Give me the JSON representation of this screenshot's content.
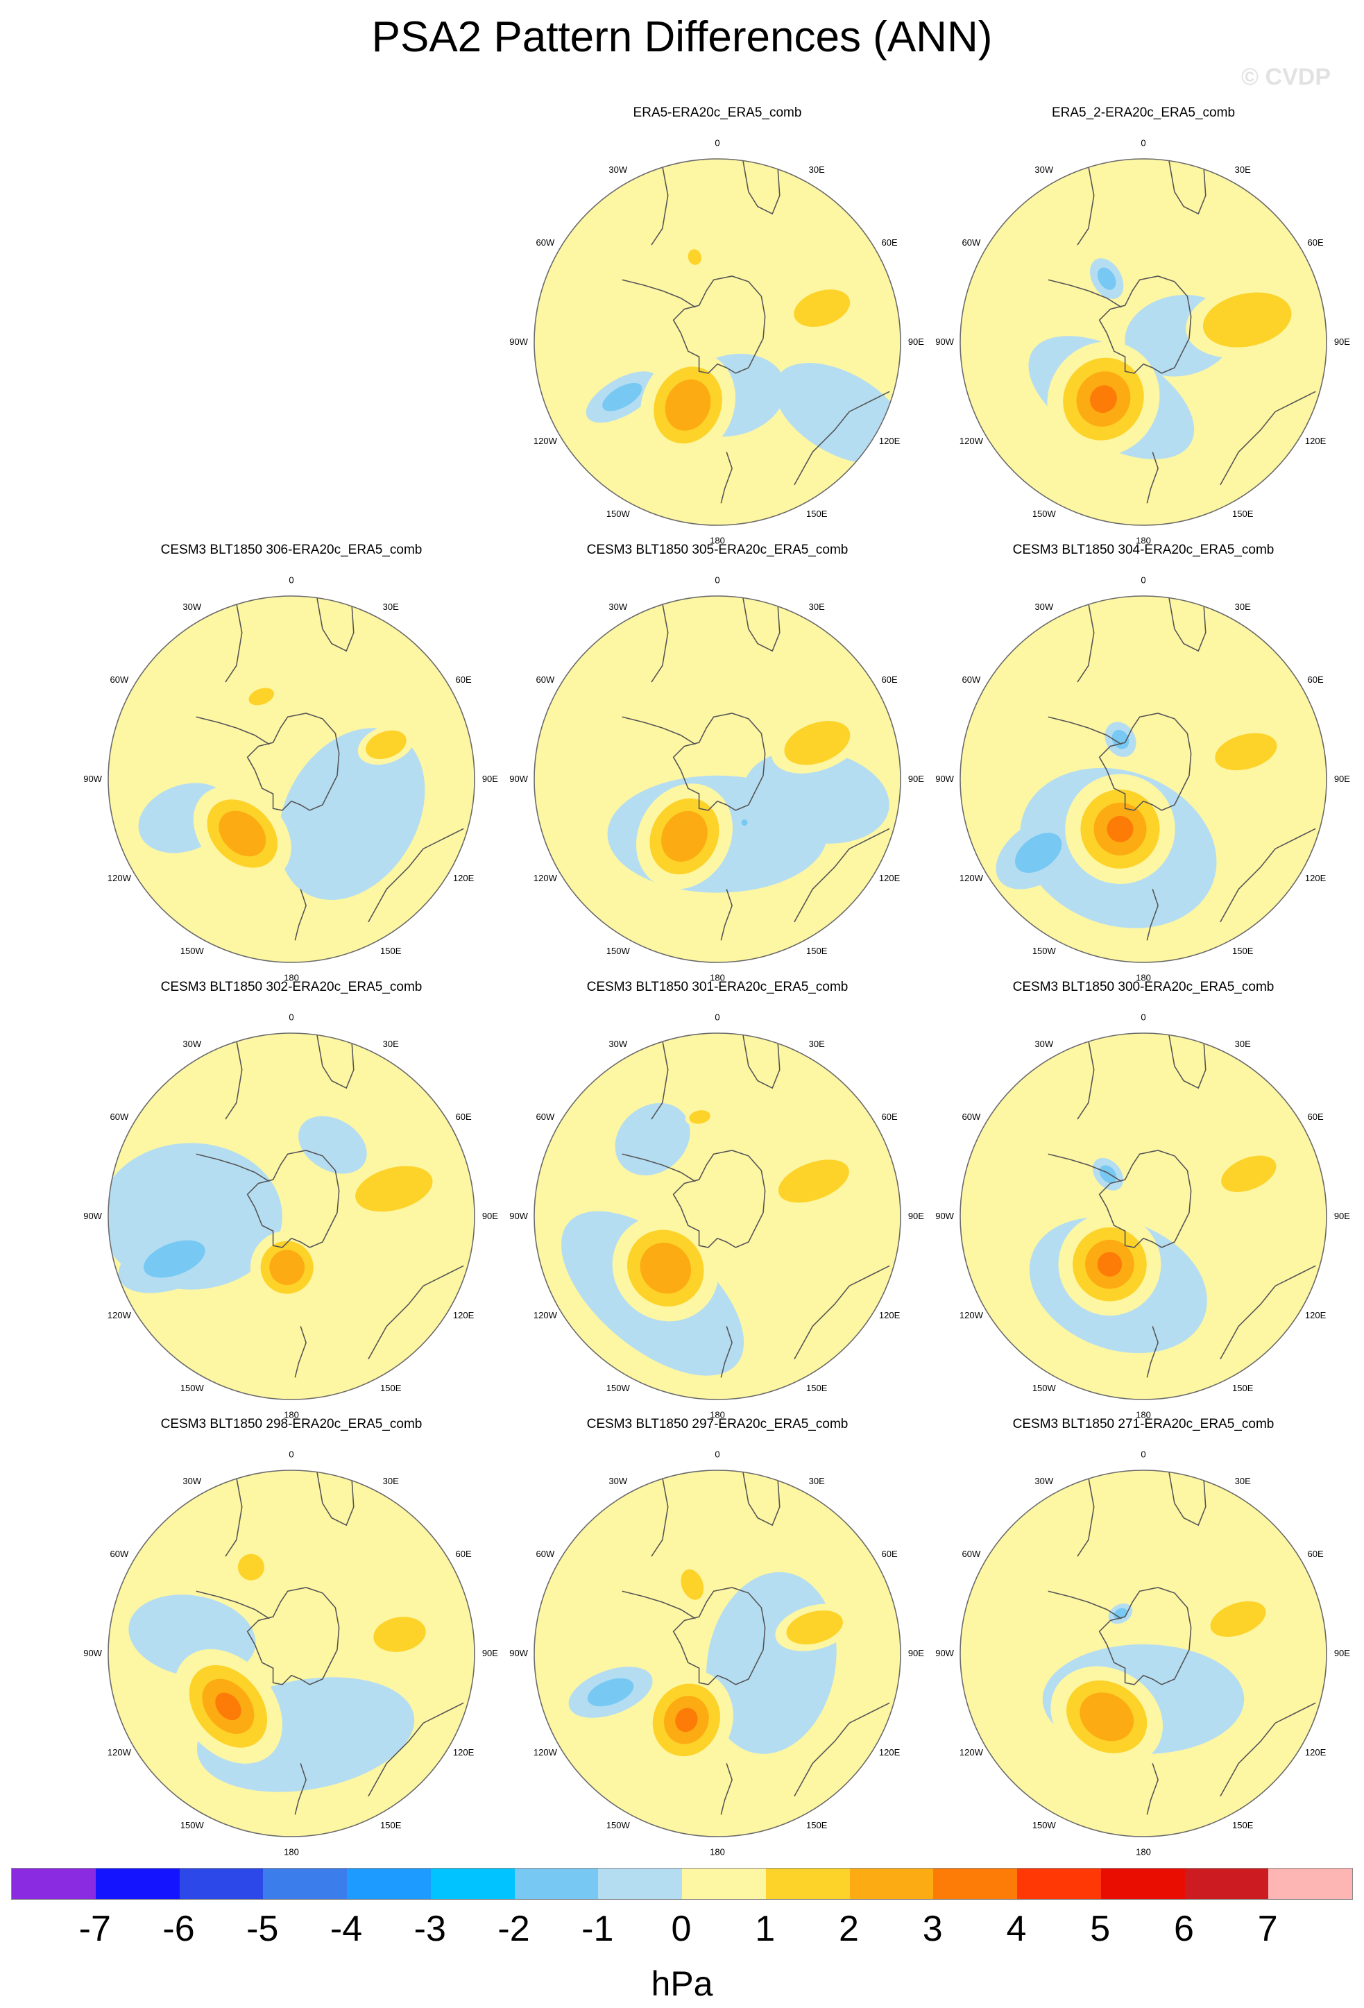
{
  "figure": {
    "title": "PSA2 Pattern Differences (ANN)",
    "watermark": "© CVDP",
    "units": "hPa"
  },
  "map_labels": [
    "0",
    "30E",
    "60E",
    "90E",
    "120E",
    "150E",
    "180",
    "150W",
    "120W",
    "90W",
    "60W",
    "30W"
  ],
  "colors": {
    "map_boundary": "#6a6a6a",
    "coast": "#555555",
    "palette": [
      "#8a2be2",
      "#1414ff",
      "#2c48e8",
      "#3b7deb",
      "#1e9bff",
      "#00c3ff",
      "#77c9f3",
      "#b5ddf2",
      "#fdf6a3",
      "#fdd32a",
      "#fdab12",
      "#fd7c08",
      "#ff3805",
      "#e80d00",
      "#cc1c22",
      "#fdb6b4"
    ]
  },
  "colorbar": {
    "ticks": [
      "-7",
      "-6",
      "-5",
      "-4",
      "-3",
      "-2",
      "-1",
      "0",
      "1",
      "2",
      "3",
      "4",
      "5",
      "6",
      "7"
    ]
  },
  "panels": [
    {
      "title": "ERA5-ERA20c_ERA5_comb",
      "blobs": [
        {
          "kind": "neg",
          "lon": 165,
          "r": 0.3,
          "a": 0.3,
          "b": 0.22,
          "level": 1
        },
        {
          "kind": "neg",
          "lon": 120,
          "r": 0.78,
          "a": 0.22,
          "b": 0.4,
          "level": 1
        },
        {
          "kind": "neg",
          "lon": 240,
          "r": 0.6,
          "a": 0.1,
          "b": 0.22,
          "level": 2
        },
        {
          "kind": "pos",
          "lon": 205,
          "r": 0.38,
          "a": 0.25,
          "b": 0.3,
          "level": 3
        },
        {
          "kind": "pos",
          "lon": 72,
          "r": 0.6,
          "a": 0.13,
          "b": 0.22,
          "level": 2
        },
        {
          "kind": "pos",
          "lon": 345,
          "r": 0.48,
          "a": 0.05,
          "b": 0.06,
          "level": 2
        }
      ]
    },
    {
      "title": "ERA5_2-ERA20c_ERA5_comb",
      "blobs": [
        {
          "kind": "neg",
          "lon": 210,
          "r": 0.35,
          "a": 0.5,
          "b": 0.26,
          "level": 1
        },
        {
          "kind": "neg",
          "lon": 80,
          "r": 0.2,
          "a": 0.22,
          "b": 0.3,
          "level": 1
        },
        {
          "kind": "neg",
          "lon": 330,
          "r": 0.4,
          "a": 0.08,
          "b": 0.12,
          "level": 2
        },
        {
          "kind": "pos",
          "lon": 215,
          "r": 0.38,
          "a": 0.3,
          "b": 0.32,
          "level": 4
        },
        {
          "kind": "pos",
          "lon": 78,
          "r": 0.58,
          "a": 0.2,
          "b": 0.34,
          "level": 2
        }
      ]
    },
    {
      "title": "CESM3 BLT1850 306-ERA20c_ERA5_comb",
      "blobs": [
        {
          "kind": "neg",
          "lon": 120,
          "r": 0.38,
          "a": 0.5,
          "b": 0.36,
          "level": 1
        },
        {
          "kind": "neg",
          "lon": 250,
          "r": 0.62,
          "a": 0.18,
          "b": 0.26,
          "level": 1
        },
        {
          "kind": "pos",
          "lon": 222,
          "r": 0.4,
          "a": 0.3,
          "b": 0.22,
          "level": 3
        },
        {
          "kind": "pos",
          "lon": 70,
          "r": 0.55,
          "a": 0.1,
          "b": 0.16,
          "level": 2
        },
        {
          "kind": "pos",
          "lon": 340,
          "r": 0.48,
          "a": 0.1,
          "b": 0.06,
          "level": 2
        }
      ]
    },
    {
      "title": "CESM3 BLT1850 305-ERA20c_ERA5_comb",
      "blobs": [
        {
          "kind": "neg",
          "lon": 180,
          "r": 0.3,
          "a": 0.6,
          "b": 0.32,
          "level": 1
        },
        {
          "kind": "neg",
          "lon": 100,
          "r": 0.55,
          "a": 0.25,
          "b": 0.4,
          "level": 1
        },
        {
          "kind": "neg",
          "lon": 148,
          "r": 0.28,
          "a": 0.03,
          "b": 0.03,
          "level": 2
        },
        {
          "kind": "pos",
          "lon": 210,
          "r": 0.36,
          "a": 0.25,
          "b": 0.3,
          "level": 3
        },
        {
          "kind": "pos",
          "lon": 70,
          "r": 0.58,
          "a": 0.15,
          "b": 0.26,
          "level": 2
        }
      ]
    },
    {
      "title": "CESM3 BLT1850 304-ERA20c_ERA5_comb",
      "blobs": [
        {
          "kind": "neg",
          "lon": 200,
          "r": 0.4,
          "a": 0.55,
          "b": 0.42,
          "level": 1
        },
        {
          "kind": "neg",
          "lon": 235,
          "r": 0.7,
          "a": 0.16,
          "b": 0.26,
          "level": 2
        },
        {
          "kind": "neg",
          "lon": 330,
          "r": 0.25,
          "a": 0.08,
          "b": 0.1,
          "level": 2
        },
        {
          "kind": "pos",
          "lon": 205,
          "r": 0.3,
          "a": 0.3,
          "b": 0.3,
          "level": 4
        },
        {
          "kind": "pos",
          "lon": 75,
          "r": 0.58,
          "a": 0.13,
          "b": 0.24,
          "level": 2
        }
      ]
    },
    {
      "title": "CESM3 BLT1850 302-ERA20c_ERA5_comb",
      "blobs": [
        {
          "kind": "neg",
          "lon": 270,
          "r": 0.55,
          "a": 0.4,
          "b": 0.5,
          "level": 1
        },
        {
          "kind": "neg",
          "lon": 30,
          "r": 0.45,
          "a": 0.2,
          "b": 0.14,
          "level": 1
        },
        {
          "kind": "neg",
          "lon": 250,
          "r": 0.68,
          "a": 0.16,
          "b": 0.32,
          "level": 2
        },
        {
          "kind": "pos",
          "lon": 185,
          "r": 0.28,
          "a": 0.2,
          "b": 0.2,
          "level": 3
        },
        {
          "kind": "pos",
          "lon": 75,
          "r": 0.58,
          "a": 0.16,
          "b": 0.3,
          "level": 2
        }
      ]
    },
    {
      "title": "CESM3 BLT1850 301-ERA20c_ERA5_comb",
      "blobs": [
        {
          "kind": "neg",
          "lon": 220,
          "r": 0.55,
          "a": 0.6,
          "b": 0.3,
          "level": 1
        },
        {
          "kind": "neg",
          "lon": 320,
          "r": 0.55,
          "a": 0.22,
          "b": 0.18,
          "level": 1
        },
        {
          "kind": "pos",
          "lon": 225,
          "r": 0.4,
          "a": 0.3,
          "b": 0.28,
          "level": 3
        },
        {
          "kind": "pos",
          "lon": 70,
          "r": 0.56,
          "a": 0.14,
          "b": 0.28,
          "level": 2
        },
        {
          "kind": "pos",
          "lon": 350,
          "r": 0.55,
          "a": 0.08,
          "b": 0.05,
          "level": 2
        }
      ]
    },
    {
      "title": "CESM3 BLT1850 300-ERA20c_ERA5_comb",
      "blobs": [
        {
          "kind": "neg",
          "lon": 200,
          "r": 0.4,
          "a": 0.5,
          "b": 0.35,
          "level": 1
        },
        {
          "kind": "neg",
          "lon": 320,
          "r": 0.3,
          "a": 0.07,
          "b": 0.1,
          "level": 2
        },
        {
          "kind": "pos",
          "lon": 215,
          "r": 0.32,
          "a": 0.28,
          "b": 0.28,
          "level": 4
        },
        {
          "kind": "pos",
          "lon": 68,
          "r": 0.62,
          "a": 0.12,
          "b": 0.22,
          "level": 2
        }
      ]
    },
    {
      "title": "CESM3 BLT1850 298-ERA20c_ERA5_comb",
      "blobs": [
        {
          "kind": "neg",
          "lon": 170,
          "r": 0.45,
          "a": 0.6,
          "b": 0.3,
          "level": 1
        },
        {
          "kind": "neg",
          "lon": 280,
          "r": 0.55,
          "a": 0.22,
          "b": 0.35,
          "level": 1
        },
        {
          "kind": "pos",
          "lon": 230,
          "r": 0.45,
          "a": 0.35,
          "b": 0.25,
          "level": 4
        },
        {
          "kind": "pos",
          "lon": 80,
          "r": 0.6,
          "a": 0.13,
          "b": 0.2,
          "level": 2
        },
        {
          "kind": "pos",
          "lon": 335,
          "r": 0.52,
          "a": 0.1,
          "b": 0.1,
          "level": 2
        }
      ]
    },
    {
      "title": "CESM3 BLT1850 297-ERA20c_ERA5_comb",
      "blobs": [
        {
          "kind": "neg",
          "lon": 100,
          "r": 0.3,
          "a": 0.5,
          "b": 0.35,
          "level": 1
        },
        {
          "kind": "neg",
          "lon": 250,
          "r": 0.62,
          "a": 0.12,
          "b": 0.24,
          "level": 2
        },
        {
          "kind": "pos",
          "lon": 205,
          "r": 0.4,
          "a": 0.25,
          "b": 0.28,
          "level": 4
        },
        {
          "kind": "pos",
          "lon": 75,
          "r": 0.55,
          "a": 0.12,
          "b": 0.22,
          "level": 2
        },
        {
          "kind": "pos",
          "lon": 340,
          "r": 0.4,
          "a": 0.08,
          "b": 0.12,
          "level": 2
        }
      ]
    },
    {
      "title": "CESM3 BLT1850 271-ERA20c_ERA5_comb",
      "blobs": [
        {
          "kind": "neg",
          "lon": 180,
          "r": 0.25,
          "a": 0.55,
          "b": 0.3,
          "level": 1
        },
        {
          "kind": "neg",
          "lon": 330,
          "r": 0.25,
          "a": 0.07,
          "b": 0.05,
          "level": 2
        },
        {
          "kind": "pos",
          "lon": 210,
          "r": 0.4,
          "a": 0.32,
          "b": 0.26,
          "level": 3
        },
        {
          "kind": "pos",
          "lon": 70,
          "r": 0.55,
          "a": 0.12,
          "b": 0.22,
          "level": 2
        }
      ]
    }
  ]
}
